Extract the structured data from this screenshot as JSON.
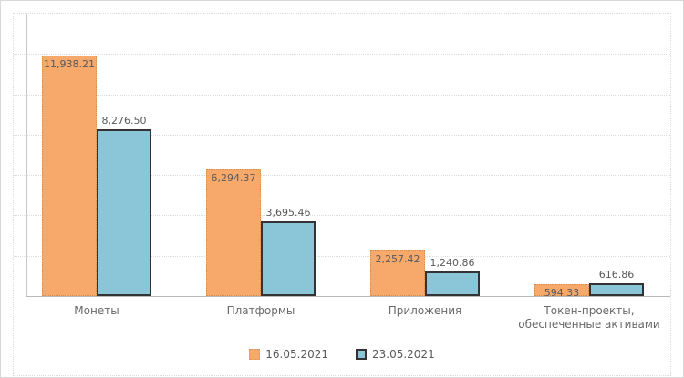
{
  "chart_data": {
    "type": "bar",
    "title": "",
    "xlabel": "",
    "ylabel": "",
    "categories": [
      "Монеты",
      "Платформы",
      "Приложения",
      "Токен-проекты,\nобеспеченные активами"
    ],
    "series": [
      {
        "name": "16.05.2021",
        "color": "#F6A96B",
        "values": [
          11938.21,
          6294.37,
          2257.42,
          594.33
        ],
        "value_labels": [
          "11,938.21",
          "6,294.37",
          "2,257.42",
          "594.33"
        ],
        "label_position": "inside-top"
      },
      {
        "name": "23.05.2021",
        "color": "#8AC6D8",
        "border_color": "#333333",
        "values": [
          8276.5,
          3695.46,
          1240.86,
          616.86
        ],
        "value_labels": [
          "8,276.50",
          "3,695.46",
          "1,240.86",
          "616.86"
        ],
        "label_position": "above"
      }
    ],
    "ylim": [
      0,
      14000
    ],
    "gridline_step": 2000,
    "grid": "horizontal-dotted",
    "y_tick_labels_visible": false,
    "legend_position": "bottom-center",
    "colors": {
      "gridline": "#dedede",
      "axis_line": "#b9b9b9",
      "chart_border": "#dcdcdc",
      "value_label_text": "#595959",
      "category_label_text": "#696969",
      "legend_text": "#595959"
    }
  }
}
